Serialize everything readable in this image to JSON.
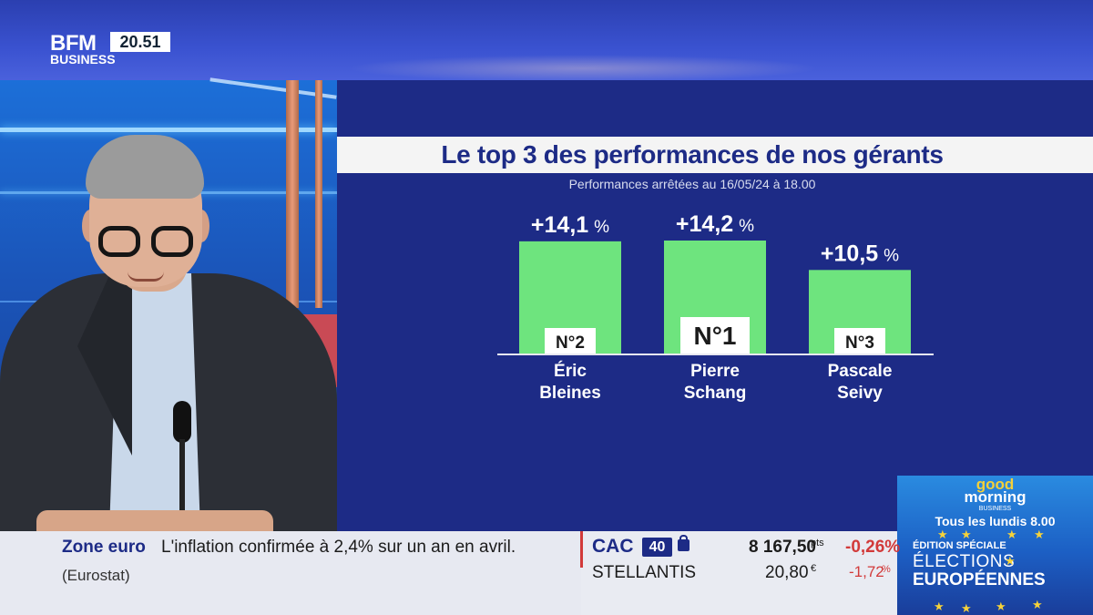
{
  "channel": {
    "logo_main": "BFM",
    "logo_sub": "BUSINESS",
    "clock": "20.51"
  },
  "chart_data": {
    "type": "bar",
    "title": "Le top 3 des performances de nos gérants",
    "subtitle": "Performances arrêtées au 16/05/24 à 18.00",
    "categories": [
      "Éric\nBleines",
      "Pierre\nSchang",
      "Pascale\nSeivy"
    ],
    "category_lines": [
      [
        "Éric",
        "Bleines"
      ],
      [
        "Pierre",
        "Schang"
      ],
      [
        "Pascale",
        "Seivy"
      ]
    ],
    "values": [
      14.1,
      14.2,
      10.5
    ],
    "value_labels": [
      "+14,1",
      "+14,2",
      "+10,5"
    ],
    "unit": "%",
    "ranks": [
      "N°2",
      "N°1",
      "N°3"
    ],
    "bar_color": "#6ee47e",
    "ylim": [
      0,
      14.2
    ],
    "grid": false,
    "legend": "none"
  },
  "ticker": {
    "topic": "Zone euro",
    "headline": "L'inflation confirmée à 2,4% sur un an en avril.",
    "source": "(Eurostat)",
    "index_name": "CAC",
    "index_badge": "40",
    "index_value": "8 167,50",
    "index_unit": "pts",
    "index_change": "-0,26%",
    "stock_name": "STELLANTIS",
    "stock_value": "20,80",
    "stock_unit": "€",
    "stock_change": "-1,72",
    "stock_change_unit": "%",
    "down_color": "#d23a3a"
  },
  "promo": {
    "show_good": "good",
    "show_morning": "morning",
    "show_biz": "BUSINESS",
    "schedule": "Tous les lundis 8.00",
    "edition": "ÉDITION SPÉCIALE",
    "line1": "ÉLECTIONS",
    "line2": "EUROPÉENNES"
  }
}
